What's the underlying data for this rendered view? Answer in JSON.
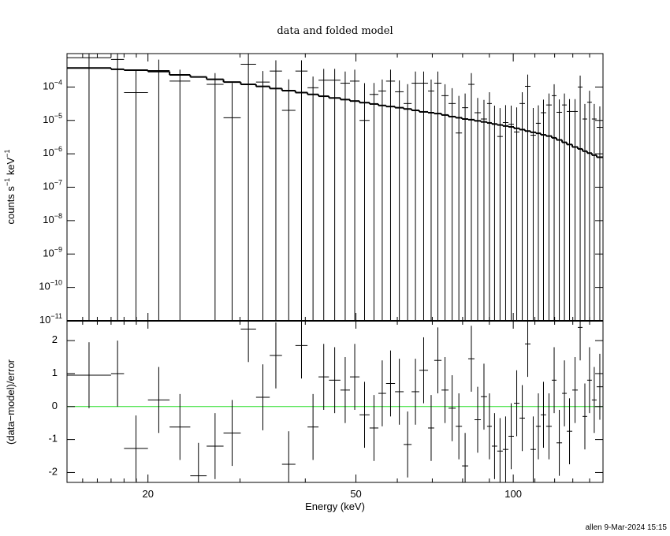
{
  "chart_data": [
    {
      "type": "errorbar",
      "title": "data and folded model",
      "ylabel": "counts s−1 keV−1",
      "log_x": true,
      "log_y": true,
      "xlim": [
        14,
        148.5
      ],
      "ylim": [
        1e-11,
        0.001
      ],
      "yticks": [
        {
          "value": 1e-11,
          "label": "10−11"
        },
        {
          "value": 1e-10,
          "label": "10−10"
        },
        {
          "value": 1e-09,
          "label": "10−9"
        },
        {
          "value": 1e-08,
          "label": "10−8"
        },
        {
          "value": 1e-07,
          "label": "10−7"
        },
        {
          "value": 1e-06,
          "label": "10−6"
        },
        {
          "value": 1e-05,
          "label": "10−5"
        },
        {
          "value": 0.0001,
          "label": "10−4"
        }
      ],
      "bins": [
        14,
        17.0,
        18.0,
        20.0,
        22.0,
        24.1,
        25.9,
        27.9,
        30.1,
        32.2,
        34.2,
        36.1,
        38.3,
        40.4,
        42.4,
        44.4,
        46.7,
        48.7,
        50.8,
        53.1,
        55.2,
        57.1,
        59.4,
        61.7,
        63.9,
        66.1,
        68.7,
        70.6,
        72.9,
        75.2,
        77.6,
        79.8,
        82.0,
        84.3,
        86.7,
        89.1,
        91.0,
        93.2,
        95.5,
        97.9,
        100.3,
        102.8,
        105.3,
        107.9,
        110.5,
        112.9,
        115.6,
        118.5,
        121.0,
        124.0,
        126.6,
        129.7,
        132.9,
        135.7,
        138.5,
        141.4,
        144.4,
        148.5
      ],
      "data": {
        "color": "#000000",
        "values": [
          0.00075,
          0.00067,
          6.8e-05,
          0.00031,
          0.00015,
          null,
          0.00012,
          1.2e-05,
          0.00048,
          0.00014,
          0.0003,
          2e-05,
          0.0003,
          9.5e-05,
          0.00016,
          0.00016,
          0.00013,
          0.00015,
          1e-05,
          6e-05,
          7.6e-05,
          0.00015,
          7.2e-05,
          3.2e-05,
          0.00013,
          0.00013,
          7.6e-05,
          0.00013,
          5.5e-05,
          3.2e-05,
          4.2e-06,
          2.4e-05,
          0.00012,
          1.7e-05,
          1.1e-05,
          3.2e-05,
          7.7e-06,
          3.3e-06,
          8.6e-06,
          7.7e-06,
          4.5e-06,
          3.2e-05,
          0.000105,
          3.6e-06,
          8.2e-06,
          1.7e-05,
          2.9e-05,
          5.5e-05,
          1.75e-05,
          2.9e-05,
          1.85e-05,
          1.85e-05,
          0.0001,
          1.1e-05,
          3.5e-05,
          1.1e-05,
          6.2e-06
        ],
        "errors": [
          0.0009,
          0.0008,
          0.00024,
          0.00035,
          0.00018,
          null,
          0.00014,
          0.00012,
          0.0005,
          0.00016,
          0.00033,
          0.00015,
          0.00033,
          0.00011,
          0.00019,
          0.00019,
          0.00016,
          0.00018,
          0.00012,
          7.2e-05,
          9.1e-05,
          0.00018,
          8.6e-05,
          9e-05,
          0.00016,
          0.00016,
          9.1e-05,
          0.00016,
          6.6e-05,
          6e-05,
          5e-05,
          4e-05,
          0.00014,
          3e-05,
          3e-05,
          3.8e-05,
          2e-05,
          2e-05,
          2e-05,
          2e-05,
          2e-05,
          3.8e-05,
          0.00013,
          2e-05,
          2e-05,
          2.5e-05,
          3.5e-05,
          6.6e-05,
          2.5e-05,
          3.5e-05,
          2.5e-05,
          2.5e-05,
          0.00012,
          2e-05,
          4.2e-05,
          2e-05,
          2e-05
        ]
      },
      "model": {
        "color": "#000000",
        "values": [
          0.00037,
          0.00034,
          0.00032,
          0.00029,
          0.00023,
          0.0002,
          0.00017,
          0.00014,
          0.00012,
          0.000104,
          9e-05,
          7.8e-05,
          6.8e-05,
          6e-05,
          5.3e-05,
          4.7e-05,
          4.2e-05,
          3.8e-05,
          3.4e-05,
          3.1e-05,
          2.8e-05,
          2.6e-05,
          2.4e-05,
          2.2e-05,
          2e-05,
          1.8e-05,
          1.7e-05,
          1.6e-05,
          1.45e-05,
          1.3e-05,
          1.2e-05,
          1.1e-05,
          1.05e-05,
          9.7e-06,
          9e-06,
          8.4e-06,
          7.8e-06,
          7.3e-06,
          6.8e-06,
          6.4e-06,
          5.8e-06,
          5.3e-06,
          4.8e-06,
          4.4e-06,
          4.1e-06,
          3.7e-06,
          3.4e-06,
          3e-06,
          2.6e-06,
          2.2e-06,
          1.9e-06,
          1.6e-06,
          1.4e-06,
          1.2e-06,
          1.05e-06,
          9.1e-07,
          7.9e-07
        ]
      }
    },
    {
      "type": "residual",
      "ylabel": "(data−model)/error",
      "xlabel": "Energy (keV)",
      "ylim": [
        -2.3,
        2.6
      ],
      "yticks": [
        -2,
        -1,
        0,
        1,
        2
      ],
      "xticks": [
        20,
        50,
        100
      ],
      "xminorticks": [
        15,
        16,
        17,
        18,
        19,
        30,
        40,
        60,
        70,
        80,
        90,
        110,
        120,
        130,
        140
      ],
      "zero_line": 0,
      "zero_line_color": "#22dd22",
      "color": "#000000",
      "values": [
        0.95,
        1.0,
        -1.27,
        0.2,
        -0.62,
        -2.1,
        -1.2,
        -0.8,
        2.35,
        0.28,
        1.55,
        -1.75,
        1.85,
        -0.62,
        0.9,
        0.8,
        0.5,
        0.9,
        -0.25,
        -0.65,
        0.4,
        0.7,
        0.45,
        -1.15,
        0.45,
        1.1,
        -0.65,
        1.4,
        0.5,
        -0.05,
        -0.6,
        -1.8,
        1.45,
        -0.4,
        0.3,
        -0.6,
        -1.2,
        -1.35,
        -1.3,
        -0.9,
        0.1,
        -0.35,
        1.9,
        -1.3,
        -0.6,
        -0.25,
        -0.6,
        0.8,
        -1.1,
        0.4,
        -0.75,
        0.5,
        2.4,
        -0.3,
        0.8,
        0.2,
        0.6
      ],
      "errors": [
        1,
        1,
        1,
        1,
        1,
        1,
        1,
        1,
        1,
        1,
        1,
        1,
        1,
        1,
        1,
        1,
        1,
        1,
        1,
        1,
        1,
        1,
        1,
        1,
        1,
        1,
        1,
        1,
        1,
        1,
        1,
        1,
        1,
        1,
        1,
        1,
        1,
        1,
        1,
        1,
        1,
        1,
        1,
        1,
        1,
        1,
        1,
        1,
        1,
        1,
        1,
        1,
        1,
        1,
        1,
        1,
        1
      ]
    }
  ],
  "footer": "allen  9-Mar-2024 15:15"
}
